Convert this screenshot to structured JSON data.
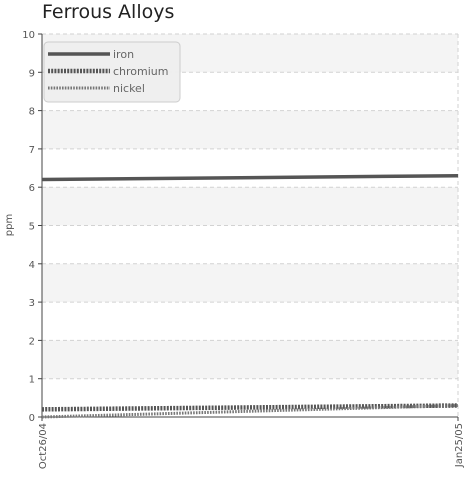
{
  "chart_data": {
    "type": "line",
    "title": "Ferrous Alloys",
    "xlabel": "",
    "ylabel": "ppm",
    "x_tick_labels": [
      "Oct26/04",
      "Jan25/05"
    ],
    "ylim": [
      0,
      10
    ],
    "y_ticks": [
      0,
      1,
      2,
      3,
      4,
      5,
      6,
      7,
      8,
      9,
      10
    ],
    "grid": true,
    "legend_position": "top-left",
    "series": [
      {
        "name": "iron",
        "x": [
          "Oct26/04",
          "Jan25/05"
        ],
        "values": [
          6.2,
          6.3
        ],
        "color": "#555555",
        "style": "solid"
      },
      {
        "name": "chromium",
        "x": [
          "Oct26/04",
          "Jan25/05"
        ],
        "values": [
          0.2,
          0.3
        ],
        "color": "#555555",
        "style": "dotted-thick"
      },
      {
        "name": "nickel",
        "x": [
          "Oct26/04",
          "Jan25/05"
        ],
        "values": [
          0.0,
          0.3
        ],
        "color": "#777777",
        "style": "dotted"
      }
    ]
  }
}
